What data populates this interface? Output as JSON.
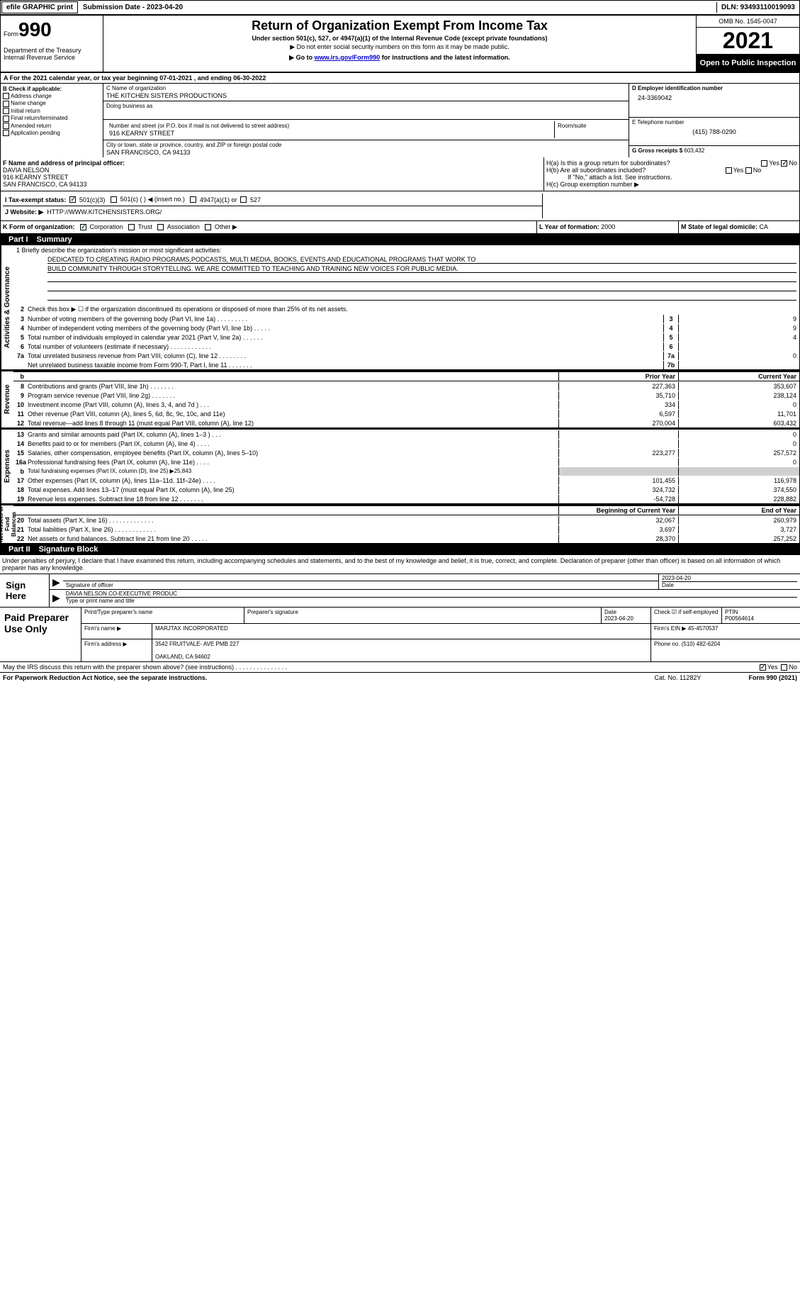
{
  "topbar": {
    "efile": "efile GRAPHIC print",
    "sub": "Submission Date - 2023-04-20",
    "dln": "DLN: 93493110019093"
  },
  "hdr": {
    "form_word": "Form",
    "form_num": "990",
    "dept": "Department of the Treasury\nInternal Revenue Service",
    "title": "Return of Organization Exempt From Income Tax",
    "s1": "Under section 501(c), 527, or 4947(a)(1) of the Internal Revenue Code (except private foundations)",
    "s2": "▶ Do not enter social security numbers on this form as it may be made public.",
    "s3a": "▶ Go to ",
    "s3b": "www.irs.gov/Form990",
    "s3c": " for instructions and the latest information.",
    "omb": "OMB No. 1545-0047",
    "year": "2021",
    "otpi": "Open to Public Inspection"
  },
  "A": {
    "text": "A For the 2021 calendar year, or tax year beginning 07-01-2021    , and ending 06-30-2022"
  },
  "B": {
    "label": "B Check if applicable:",
    "items": [
      "Address change",
      "Name change",
      "Initial return",
      "Final return/terminated",
      "Amended return",
      "Application pending"
    ]
  },
  "C": {
    "c_lbl": "C Name of organization",
    "c_val": "THE KITCHEN SISTERS PRODUCTIONS",
    "dba_lbl": "Doing business as",
    "dba_val": "",
    "addr_lbl": "Number and street (or P.O. box if mail is not delivered to street address)",
    "room_lbl": "Room/suite",
    "addr_val": "916 KEARNY STREET",
    "city_lbl": "City or town, state or province, country, and ZIP or foreign postal code",
    "city_val": "SAN FRANCISCO, CA  94133"
  },
  "D": {
    "lbl": "D Employer identification number",
    "val": "24-3369042"
  },
  "E": {
    "lbl": "E Telephone number",
    "val": "(415) 788-0290"
  },
  "G": {
    "lbl": "G Gross receipts $",
    "val": "603,432"
  },
  "F": {
    "lbl": "F  Name and address of principal officer:",
    "name": "DAVIA NELSON",
    "addr": "916 KEARNY STREET\nSAN FRANCISCO, CA  94133"
  },
  "H": {
    "a": "H(a)  Is this a group return for subordinates?",
    "a_yes": "Yes",
    "a_no": "No",
    "b": "H(b)  Are all subordinates included?",
    "b_note": "If \"No,\" attach a list. See instructions.",
    "c": "H(c)  Group exemption number ▶"
  },
  "I": {
    "lbl": "I     Tax-exempt status:",
    "o1": "501(c)(3)",
    "o2": "501(c) (  ) ◀ (insert no.)",
    "o3": "4947(a)(1) or",
    "o4": "527"
  },
  "J": {
    "lbl": "J     Website: ▶",
    "val": "HTTP://WWW.KITCHENSISTERS.ORG/"
  },
  "K": {
    "lbl": "K Form of organization:",
    "o1": "Corporation",
    "o2": "Trust",
    "o3": "Association",
    "o4": "Other ▶"
  },
  "L": {
    "lbl": "L Year of formation:",
    "val": "2000"
  },
  "M": {
    "lbl": "M State of legal domicile:",
    "val": "CA"
  },
  "part1": {
    "num": "Part I",
    "title": "Summary"
  },
  "mission": {
    "l1": "1   Briefly describe the organization's mission or most significant activities:",
    "txt1": "DEDICATED TO CREATING RADIO PROGRAMS,PODCASTS, MULTI MEDIA, BOOKS, EVENTS AND EDUCATIONAL PROGRAMS THAT WORK TO",
    "txt2": "BUILD COMMUNITY THROUGH STORYTELLING. WE ARE COMMITTED TO TEACHING AND TRAINING NEW VOICES FOR PUBLIC MEDIA."
  },
  "sidelabels": {
    "ag": "Activities & Governance",
    "rev": "Revenue",
    "exp": "Expenses",
    "na": "Net Assets or\nFund Balances"
  },
  "lines_ag": [
    {
      "n": "2",
      "d": "Check this box ▶ ☐  if the organization discontinued its operations or disposed of more than 25% of its net assets."
    },
    {
      "n": "3",
      "d": "Number of voting members of the governing body (Part VI, line 1a)   .     .     .     .     .     .     .     .     .",
      "box": "3",
      "v": "9"
    },
    {
      "n": "4",
      "d": "Number of independent voting members of the governing body (Part VI, line 1b)   .     .     .     .     .",
      "box": "4",
      "v": "9"
    },
    {
      "n": "5",
      "d": "Total number of individuals employed in calendar year 2021 (Part V, line 2a)   .     .     .     .     .     .",
      "box": "5",
      "v": "4"
    },
    {
      "n": "6",
      "d": "Total number of volunteers (estimate if necessary)    .     .     .     .     .     .     .     .     .     .     .     .",
      "box": "6",
      "v": ""
    },
    {
      "n": "7a",
      "d": "Total unrelated business revenue from Part VIII, column (C), line 12   .     .     .     .     .     .     .     .",
      "box": "7a",
      "v": "0"
    },
    {
      "n": "",
      "d": "Net unrelated business taxable income from Form 990-T, Part I, line 11   .     .     .     .     .     .     .",
      "box": "7b",
      "v": ""
    }
  ],
  "colhdr": {
    "b": "b",
    "prior": "Prior Year",
    "curr": "Current Year"
  },
  "lines_rev": [
    {
      "n": "8",
      "d": "Contributions and grants (Part VIII, line 1h)   .     .     .     .     .     .     .",
      "p": "227,363",
      "c": "353,607"
    },
    {
      "n": "9",
      "d": "Program service revenue (Part VIII, line 2g)   .     .     .     .     .     .     .",
      "p": "35,710",
      "c": "238,124"
    },
    {
      "n": "10",
      "d": "Investment income (Part VIII, column (A), lines 3, 4, and 7d )   .     .     .",
      "p": "334",
      "c": "0"
    },
    {
      "n": "11",
      "d": "Other revenue (Part VIII, column (A), lines 5, 6d, 8c, 9c, 10c, and 11e)",
      "p": "6,597",
      "c": "11,701"
    },
    {
      "n": "12",
      "d": "Total revenue—add lines 8 through 11 (must equal Part VIII, column (A), line 12)",
      "p": "270,004",
      "c": "603,432"
    }
  ],
  "lines_exp": [
    {
      "n": "13",
      "d": "Grants and similar amounts paid (Part IX, column (A), lines 1–3 )   .     .     .",
      "p": "",
      "c": "0"
    },
    {
      "n": "14",
      "d": "Benefits paid to or for members (Part IX, column (A), line 4)   .     .     .     .",
      "p": "",
      "c": "0"
    },
    {
      "n": "15",
      "d": "Salaries, other compensation, employee benefits (Part IX, column (A), lines 5–10)",
      "p": "223,277",
      "c": "257,572"
    },
    {
      "n": "16a",
      "d": "Professional fundraising fees (Part IX, column (A), line 11e)   .     .     .     .",
      "p": "",
      "c": "0"
    },
    {
      "n": "b",
      "d": "Total fundraising expenses (Part IX, column (D), line 25) ▶25,843",
      "grey": true
    },
    {
      "n": "17",
      "d": "Other expenses (Part IX, column (A), lines 11a–11d, 11f–24e)   .     .     .     .",
      "p": "101,455",
      "c": "116,978"
    },
    {
      "n": "18",
      "d": "Total expenses. Add lines 13–17 (must equal Part IX, column (A), line 25)",
      "p": "324,732",
      "c": "374,550"
    },
    {
      "n": "19",
      "d": "Revenue less expenses. Subtract line 18 from line 12  .     .    .    .    .    .    .",
      "p": "-54,728",
      "c": "228,882"
    }
  ],
  "colhdr2": {
    "prior": "Beginning of Current Year",
    "curr": "End of Year"
  },
  "lines_na": [
    {
      "n": "20",
      "d": "Total assets (Part X, line 16)  .     .     .     .     .     .     .     .     .     .     .     .     .",
      "p": "32,067",
      "c": "260,979"
    },
    {
      "n": "21",
      "d": "Total liabilities (Part X, line 26)  .     .     .     .     .     .     .     .     .     .     .     .",
      "p": "3,697",
      "c": "3,727"
    },
    {
      "n": "22",
      "d": "Net assets or fund balances. Subtract line 21 from line 20   .     .     .     .     .",
      "p": "28,370",
      "c": "257,252"
    }
  ],
  "part2": {
    "num": "Part II",
    "title": "Signature Block"
  },
  "sigtext": "Under penalties of perjury, I declare that I have examined this return, including accompanying schedules and statements, and to the best of my knowledge and belief, it is true, correct, and complete. Declaration of preparer (other than officer) is based on all information of which preparer has any knowledge.",
  "sign": {
    "lbl": "Sign Here",
    "r1a": "Signature of officer",
    "r1b": "2023-04-20",
    "r1c": "Date",
    "r2a": "DAVIA NELSON  CO-EXECUTIVE PRODUC",
    "r2b": "Type or print name and title"
  },
  "paid": {
    "lbl": "Paid Preparer Use Only",
    "h1": "Print/Type preparer's name",
    "h2": "Preparer's signature",
    "h3": "Date",
    "h3v": "2023-04-20",
    "h4": "Check ☑ if self-employed",
    "h5": "PTIN",
    "h5v": "P00564614",
    "r2a": "Firm's name     ▶",
    "r2b": "MARJTAX INCORPORATED",
    "r2c": "Firm's EIN ▶",
    "r2d": "45-4570537",
    "r3a": "Firm's address ▶",
    "r3b": "3542 FRUITVALE- AVE PMB 227",
    "r3c": "Phone no.",
    "r3d": "(510) 482-6204",
    "r4": "OAKLAND, CA  94602"
  },
  "discuss": {
    "q": "May the IRS discuss this return with the preparer shown above? (see instructions)   .     .     .     .     .     .     .     .     .     .     .     .     .     .     .",
    "yes": "Yes",
    "no": "No"
  },
  "footer": {
    "a": "For Paperwork Reduction Act Notice, see the separate instructions.",
    "b": "Cat. No. 11282Y",
    "c": "Form 990 (2021)"
  }
}
